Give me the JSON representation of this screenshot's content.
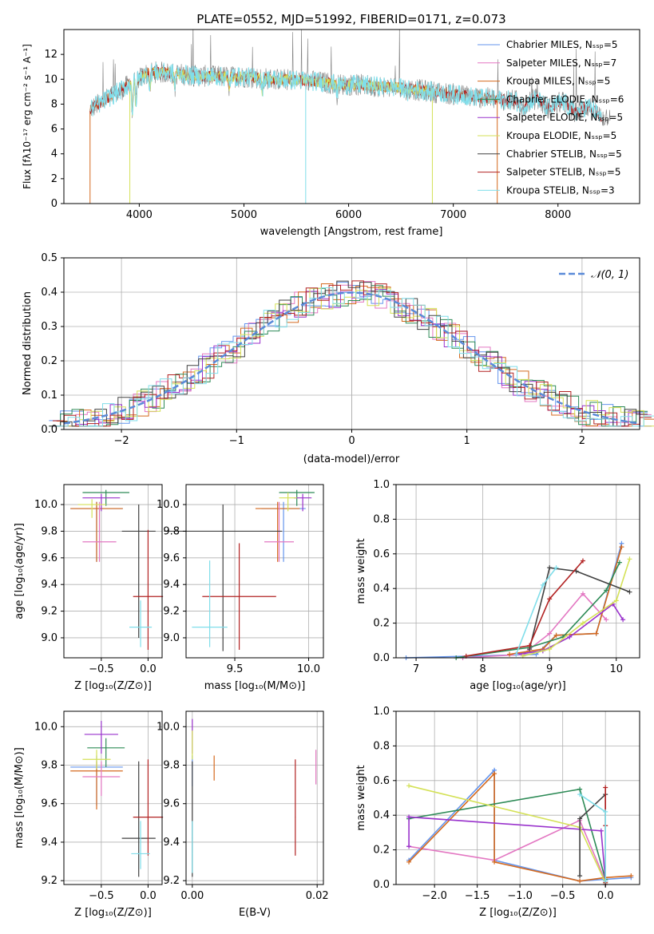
{
  "title": "PLATE=0552, MJD=51992, FIBERID=0171, z=0.073",
  "colors": {
    "chabrier_miles": "#6495ed",
    "salpeter_miles": "#e377c2",
    "kroupa_miles": "#d4691e",
    "chabrier_elodie": "#2e8b57",
    "salpeter_elodie": "#9932cc",
    "kroupa_elodie": "#d4e157",
    "chabrier_stelib": "#404040",
    "salpeter_stelib": "#b22222",
    "kroupa_stelib": "#80deea",
    "data": "#808080",
    "grid": "#b0b0b0"
  },
  "chart_data": [
    {
      "id": "spectrum",
      "type": "line",
      "xlabel": "wavelength [Angstrom, rest frame]",
      "ylabel": "Flux [fλ10⁻¹⁷ erg cm⁻² s⁻¹ A⁻¹]",
      "xlim": [
        3280,
        8780
      ],
      "ylim": [
        0,
        14
      ],
      "xticks": [
        4000,
        5000,
        6000,
        7000,
        8000
      ],
      "yticks": [
        0,
        2,
        4,
        6,
        8,
        10,
        12
      ],
      "grid": false,
      "legend_position": "top-right",
      "legend": [
        "Chabrier MILES, Nₛₛₚ=5",
        "Salpeter MILES, Nₛₛₚ=7",
        "Kroupa MILES, Nₛₛₚ=5",
        "Chabrier ELODIE, Nₛₛₚ=6",
        "Salpeter ELODIE, Nₛₛₚ=5",
        "Kroupa ELODIE, Nₛₛₚ=5",
        "Chabrier STELIB, Nₛₛₚ=5",
        "Salpeter STELIB, Nₛₛₚ=5",
        "Kroupa STELIB, Nₛₛₚ=3"
      ],
      "continuum": {
        "x": [
          3530,
          3650,
          3800,
          3950,
          4100,
          4300,
          4500,
          4800,
          5000,
          5300,
          5600,
          5900,
          6200,
          6500,
          6800,
          7100,
          7400,
          7700,
          8000,
          8300,
          8500
        ],
        "y": [
          7.6,
          8.2,
          9.0,
          9.8,
          10.6,
          10.5,
          10.3,
          10.2,
          10.2,
          10.0,
          9.9,
          9.6,
          9.5,
          9.3,
          9.0,
          8.7,
          8.4,
          8.2,
          7.9,
          7.5,
          7.1
        ]
      }
    },
    {
      "id": "residuals",
      "type": "histogram",
      "xlabel": "(data-model)/error",
      "ylabel": "Normed distribution",
      "xlim": [
        -2.5,
        2.5
      ],
      "ylim": [
        0,
        0.5
      ],
      "xticks": [
        -2,
        -1,
        0,
        1,
        2
      ],
      "yticks": [
        0.0,
        0.1,
        0.2,
        0.3,
        0.4,
        0.5
      ],
      "grid": true,
      "legend_position": "top-right",
      "reference_label": "𝒩(0, 1)"
    },
    {
      "id": "age_vs_Z",
      "type": "scatter",
      "xlabel": "Z [log₁₀(Z/Z⊙)]",
      "ylabel": "age  [log₁₀(age/yr)]",
      "xlim": [
        -0.9,
        0.15
      ],
      "ylim": [
        8.85,
        10.15
      ],
      "xticks": [
        -0.5,
        0.0
      ],
      "yticks": [
        9.0,
        9.2,
        9.4,
        9.6,
        9.8,
        10.0
      ],
      "grid": true
    },
    {
      "id": "age_vs_mass",
      "type": "scatter",
      "xlabel": "mass [log₁₀(M/M⊙)]",
      "ylabel": "",
      "xlim": [
        9.17,
        10.1
      ],
      "ylim": [
        8.85,
        10.15
      ],
      "xticks": [
        9.5,
        10.0
      ],
      "yticks": [
        9.0,
        9.2,
        9.4,
        9.6,
        9.8,
        10.0
      ],
      "grid": true
    },
    {
      "id": "weight_vs_age",
      "type": "line",
      "xlabel": "age  [log₁₀(age/yr)]",
      "ylabel": "mass weight",
      "xlim": [
        6.7,
        10.35
      ],
      "ylim": [
        0,
        1.0
      ],
      "xticks": [
        7,
        8,
        9,
        10
      ],
      "yticks": [
        0.0,
        0.2,
        0.4,
        0.6,
        0.8,
        1.0
      ],
      "grid": true,
      "series": [
        {
          "color": "chabrier_miles",
          "x": [
            6.85,
            8.8,
            9.1,
            9.7,
            10.08
          ],
          "y": [
            0.0,
            0.02,
            0.13,
            0.14,
            0.66
          ]
        },
        {
          "color": "salpeter_miles",
          "x": [
            7.7,
            8.6,
            9.0,
            9.5,
            9.85
          ],
          "y": [
            0.0,
            0.02,
            0.14,
            0.37,
            0.22
          ]
        },
        {
          "color": "kroupa_miles",
          "x": [
            8.4,
            8.9,
            9.1,
            9.7,
            10.08
          ],
          "y": [
            0.02,
            0.05,
            0.13,
            0.14,
            0.64
          ]
        },
        {
          "color": "chabrier_elodie",
          "x": [
            7.6,
            8.7,
            9.2,
            9.85,
            10.05
          ],
          "y": [
            0.0,
            0.06,
            0.12,
            0.39,
            0.55
          ]
        },
        {
          "color": "salpeter_elodie",
          "x": [
            8.5,
            8.9,
            9.3,
            9.95,
            10.1
          ],
          "y": [
            0.02,
            0.04,
            0.12,
            0.31,
            0.22
          ]
        },
        {
          "color": "kroupa_elodie",
          "x": [
            8.6,
            9.0,
            9.5,
            10.0,
            10.2
          ],
          "y": [
            0.01,
            0.05,
            0.2,
            0.33,
            0.57
          ]
        },
        {
          "color": "chabrier_stelib",
          "x": [
            8.7,
            9.0,
            9.4,
            10.2
          ],
          "y": [
            0.05,
            0.52,
            0.5,
            0.38
          ]
        },
        {
          "color": "salpeter_stelib",
          "x": [
            7.75,
            8.7,
            9.0,
            9.5
          ],
          "y": [
            0.01,
            0.07,
            0.34,
            0.56
          ]
        },
        {
          "color": "kroupa_stelib",
          "x": [
            8.5,
            8.9,
            9.1
          ],
          "y": [
            0.02,
            0.42,
            0.52
          ]
        }
      ]
    },
    {
      "id": "mass_vs_Z",
      "type": "scatter",
      "xlabel": "Z [log₁₀(Z/Z⊙)]",
      "ylabel": "mass [log₁₀(M/M⊙)]",
      "xlim": [
        -0.9,
        0.15
      ],
      "ylim": [
        9.18,
        10.08
      ],
      "xticks": [
        -0.5,
        0.0
      ],
      "yticks": [
        9.2,
        9.4,
        9.6,
        9.8,
        10.0
      ],
      "grid": true
    },
    {
      "id": "mass_vs_ebv",
      "type": "scatter",
      "xlabel": "E(B-V)",
      "ylabel": "",
      "xlim": [
        -0.001,
        0.021
      ],
      "ylim": [
        9.18,
        10.08
      ],
      "xticks": [
        0.0,
        0.02
      ],
      "yticks": [
        9.2,
        9.4,
        9.6,
        9.8,
        10.0
      ],
      "grid": true
    },
    {
      "id": "weight_vs_Z",
      "type": "line",
      "xlabel": "Z [log₁₀(Z/Z⊙)]",
      "ylabel": "mass weight",
      "xlim": [
        -2.45,
        0.4
      ],
      "ylim": [
        0,
        1.0
      ],
      "xticks": [
        -2.0,
        -1.5,
        -1.0,
        -0.5,
        0.0
      ],
      "yticks": [
        0.0,
        0.2,
        0.4,
        0.6,
        0.8,
        1.0
      ],
      "grid": true,
      "series": [
        {
          "color": "chabrier_miles",
          "x": [
            -2.3,
            -1.3,
            -1.3,
            -0.3,
            0.0,
            0.3
          ],
          "y": [
            0.14,
            0.66,
            0.14,
            0.02,
            0.03,
            0.04
          ]
        },
        {
          "color": "salpeter_miles",
          "x": [
            -2.3,
            -1.3,
            -0.3,
            0.0
          ],
          "y": [
            0.22,
            0.14,
            0.37,
            0.02
          ]
        },
        {
          "color": "kroupa_miles",
          "x": [
            -2.3,
            -1.3,
            -1.3,
            -0.3,
            0.0,
            0.3
          ],
          "y": [
            0.13,
            0.64,
            0.13,
            0.02,
            0.04,
            0.05
          ]
        },
        {
          "color": "chabrier_elodie",
          "x": [
            -2.3,
            -2.3,
            -0.3,
            0.0
          ],
          "y": [
            0.38,
            0.38,
            0.55,
            0.03
          ]
        },
        {
          "color": "salpeter_elodie",
          "x": [
            -2.3,
            -2.3,
            -0.05,
            0.0
          ],
          "y": [
            0.22,
            0.39,
            0.31,
            0.02
          ]
        },
        {
          "color": "kroupa_elodie",
          "x": [
            -2.3,
            -0.3,
            0.0
          ],
          "y": [
            0.57,
            0.33,
            0.01
          ]
        },
        {
          "color": "chabrier_stelib",
          "x": [
            -0.3,
            -0.3,
            0.0,
            0.0
          ],
          "y": [
            0.05,
            0.38,
            0.52,
            0.0
          ]
        },
        {
          "color": "salpeter_stelib",
          "x": [
            0.0,
            0.0,
            0.0
          ],
          "y": [
            0.01,
            0.56,
            0.34
          ]
        },
        {
          "color": "kroupa_stelib",
          "x": [
            -0.3,
            0.0,
            0.0
          ],
          "y": [
            0.52,
            0.42,
            0.02
          ]
        }
      ]
    }
  ]
}
